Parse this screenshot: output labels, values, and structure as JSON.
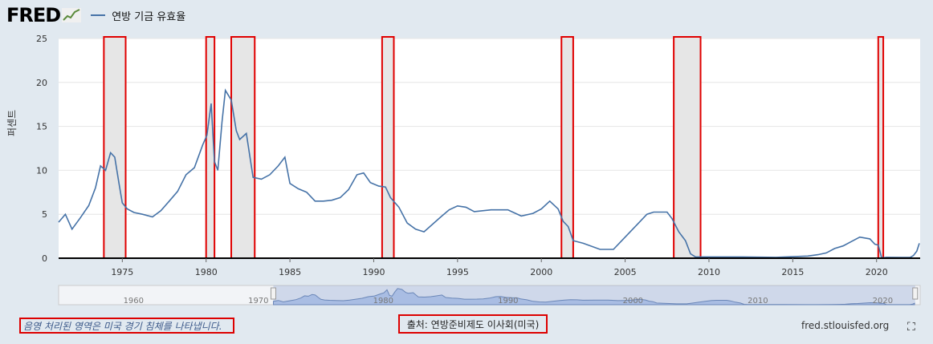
{
  "header": {
    "logo_text": "FRED",
    "series_label": "연방 기금 유효율"
  },
  "y_axis_title": "퍼센트",
  "footer": {
    "shaded_note": "음영 처리된 영역은 미국 경기 침체를 나타냅니다.",
    "source": "출처: 연방준비제도 이사회(미국)",
    "site": "fred.stlouisfed.org",
    "fullscreen_icon": "⛶"
  },
  "colors": {
    "series": "#4572a7",
    "recession_fill": "#e6e6e6",
    "recession_border": "#e00000",
    "navigator_fill": "#a9bde3"
  },
  "chart_data": {
    "type": "line",
    "title": "",
    "xlabel": "",
    "ylabel": "퍼센트",
    "xlim": [
      1971.2,
      2022.6
    ],
    "ylim": [
      0,
      25
    ],
    "x_ticks": [
      1975,
      1980,
      1985,
      1990,
      1995,
      2000,
      2005,
      2010,
      2015,
      2020
    ],
    "y_ticks": [
      0,
      5,
      10,
      15,
      20,
      25
    ],
    "navigator_ticks": [
      1960,
      1970,
      1980,
      1990,
      2000,
      2010,
      2020
    ],
    "navigator_range": [
      1954,
      2023
    ],
    "recessions": [
      [
        1973.9,
        1975.2
      ],
      [
        1980.0,
        1980.5
      ],
      [
        1981.5,
        1982.9
      ],
      [
        1990.5,
        1991.2
      ],
      [
        2001.2,
        2001.9
      ],
      [
        2007.9,
        2009.5
      ],
      [
        2020.1,
        2020.4
      ]
    ],
    "series": [
      {
        "name": "연방 기금 유효율",
        "x": [
          1971.2,
          1971.6,
          1972.0,
          1972.5,
          1973.0,
          1973.4,
          1973.7,
          1974.0,
          1974.3,
          1974.55,
          1974.8,
          1975.0,
          1975.3,
          1975.7,
          1976.2,
          1976.8,
          1977.3,
          1977.8,
          1978.3,
          1978.8,
          1979.3,
          1979.8,
          1980.05,
          1980.3,
          1980.5,
          1980.7,
          1980.95,
          1981.15,
          1981.5,
          1981.8,
          1982.0,
          1982.4,
          1982.8,
          1983.3,
          1983.8,
          1984.3,
          1984.7,
          1985.0,
          1985.5,
          1986.0,
          1986.5,
          1987.0,
          1987.5,
          1988.0,
          1988.5,
          1989.0,
          1989.4,
          1989.8,
          1990.3,
          1990.7,
          1991.0,
          1991.5,
          1992.0,
          1992.5,
          1993.0,
          1994.0,
          1994.5,
          1995.0,
          1995.5,
          1996.0,
          1997.0,
          1998.0,
          1998.8,
          1999.5,
          2000.0,
          2000.5,
          2001.0,
          2001.3,
          2001.6,
          2001.9,
          2002.5,
          2003.5,
          2004.3,
          2004.8,
          2005.3,
          2005.8,
          2006.3,
          2006.7,
          2007.5,
          2007.8,
          2008.2,
          2008.6,
          2008.9,
          2009.2,
          2010.0,
          2012.0,
          2014.0,
          2015.9,
          2016.5,
          2017.0,
          2017.5,
          2018.0,
          2018.5,
          2019.0,
          2019.6,
          2019.9,
          2020.1,
          2020.3,
          2020.6,
          2021.5,
          2022.0,
          2022.2,
          2022.4,
          2022.55
        ],
        "values": [
          4.1,
          5.0,
          3.3,
          4.6,
          6.0,
          8.0,
          10.5,
          10.0,
          12.0,
          11.5,
          8.5,
          6.3,
          5.6,
          5.2,
          5.0,
          4.7,
          5.4,
          6.5,
          7.6,
          9.5,
          10.3,
          12.9,
          14.0,
          17.6,
          11.0,
          10.0,
          15.5,
          19.1,
          18.0,
          14.5,
          13.5,
          14.2,
          9.2,
          9.0,
          9.5,
          10.5,
          11.5,
          8.5,
          7.9,
          7.5,
          6.5,
          6.5,
          6.6,
          6.9,
          7.8,
          9.5,
          9.7,
          8.6,
          8.2,
          8.1,
          6.9,
          5.8,
          4.0,
          3.3,
          3.0,
          4.7,
          5.5,
          5.95,
          5.8,
          5.3,
          5.5,
          5.5,
          4.8,
          5.1,
          5.6,
          6.5,
          5.6,
          4.2,
          3.6,
          2.0,
          1.7,
          1.0,
          1.0,
          2.0,
          3.0,
          4.0,
          5.0,
          5.25,
          5.25,
          4.5,
          3.0,
          2.0,
          0.5,
          0.15,
          0.15,
          0.15,
          0.1,
          0.25,
          0.4,
          0.6,
          1.1,
          1.4,
          1.9,
          2.4,
          2.2,
          1.6,
          1.5,
          0.05,
          0.1,
          0.08,
          0.08,
          0.3,
          0.8,
          1.7
        ]
      }
    ]
  }
}
